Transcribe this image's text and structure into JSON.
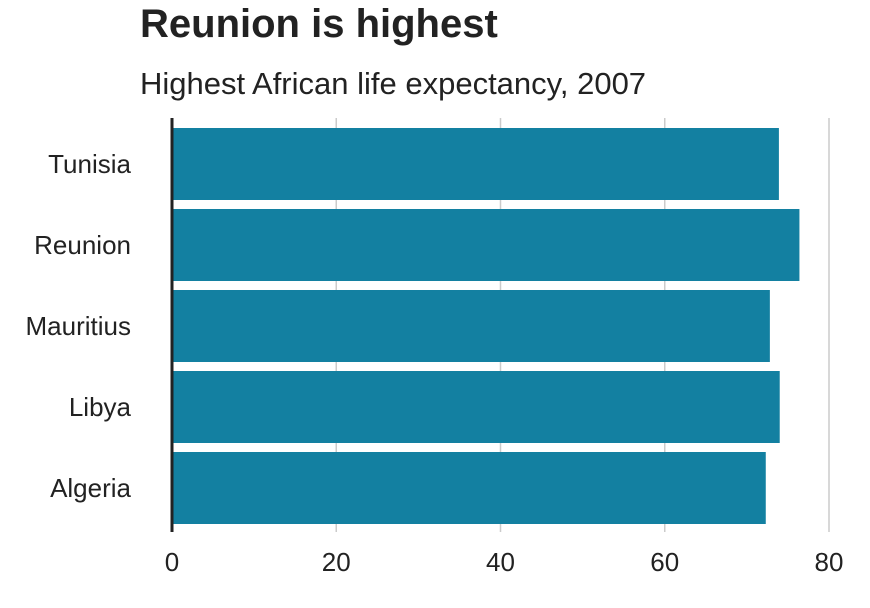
{
  "chart_data": {
    "type": "bar",
    "orientation": "horizontal",
    "title": "Reunion is highest",
    "subtitle": "Highest African life expectancy, 2007",
    "xlabel": "",
    "ylabel": "",
    "categories": [
      "Tunisia",
      "Reunion",
      "Mauritius",
      "Libya",
      "Algeria"
    ],
    "values": [
      73.9,
      76.4,
      72.8,
      74.0,
      72.3
    ],
    "xlim": [
      0,
      80
    ],
    "x_ticks": [
      0,
      20,
      40,
      60,
      80
    ],
    "x_tick_labels": [
      "0",
      "20",
      "40",
      "60",
      "80"
    ],
    "grid": true,
    "bar_color": "#1380a1",
    "grid_color": "#cbcbcb",
    "axis_color": "#222222"
  }
}
